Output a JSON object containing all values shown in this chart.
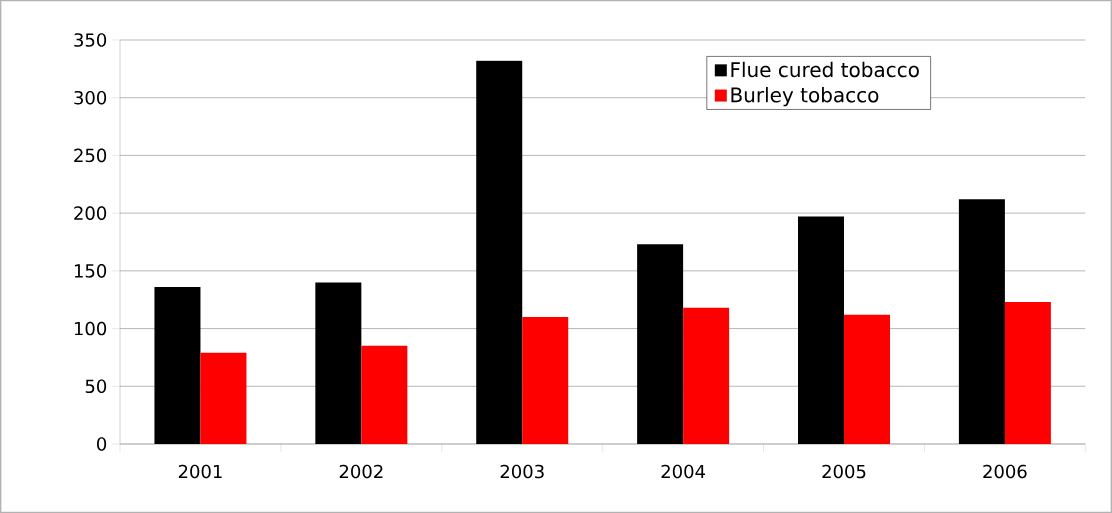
{
  "chart_data": {
    "type": "bar",
    "categories": [
      "2001",
      "2002",
      "2003",
      "2004",
      "2005",
      "2006"
    ],
    "series": [
      {
        "name": "Flue cured tobacco",
        "color": "#000000",
        "values": [
          136,
          140,
          332,
          173,
          197,
          212
        ]
      },
      {
        "name": "Burley tobacco",
        "color": "#ff0000",
        "values": [
          79,
          85,
          110,
          118,
          112,
          123
        ]
      }
    ],
    "ylim": [
      0,
      350
    ],
    "yticks": [
      0,
      50,
      100,
      150,
      200,
      250,
      300,
      350
    ],
    "grid": "y",
    "legend": "top right"
  }
}
